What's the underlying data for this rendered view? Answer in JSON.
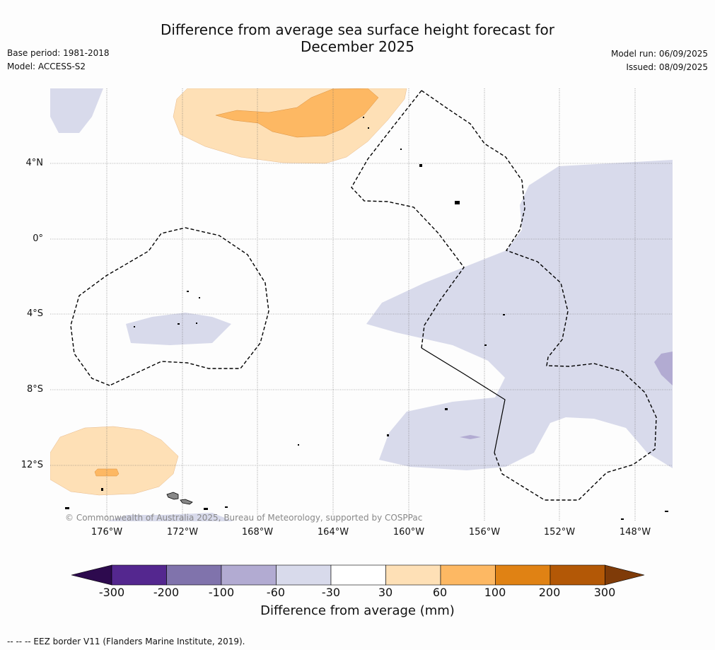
{
  "title_line1": "Difference from average sea surface height forecast for",
  "title_line2": "December 2025",
  "base_period": "Base period: 1981-2018",
  "model": "Model: ACCESS-S2",
  "model_run": "Model run: 06/09/2025",
  "issued": "Issued: 08/09/2025",
  "map": {
    "lat_labels": [
      "4°N",
      "0°",
      "4°S",
      "8°S",
      "12°S"
    ],
    "lon_labels": [
      "176°W",
      "172°W",
      "168°W",
      "164°W",
      "160°W",
      "156°W",
      "152°W",
      "148°W"
    ],
    "copyright": "© Commonwealth of Australia 2025, Bureau of Meteorology, supported by COSPPac"
  },
  "colorbar": {
    "ticks": [
      "-300",
      "-200",
      "-100",
      "-60",
      "-30",
      "30",
      "60",
      "100",
      "200",
      "300"
    ],
    "colors": [
      "#2d0a4e",
      "#54278f",
      "#8073ac",
      "#b2abd2",
      "#d8daeb",
      "#ffffff",
      "#fee0b6",
      "#fdb863",
      "#e08214",
      "#b35806",
      "#7f3b08"
    ],
    "label": "Difference from average (mm)"
  },
  "footnote": "--  --  -- EEZ border V11 (Flanders Marine Institute, 2019)."
}
